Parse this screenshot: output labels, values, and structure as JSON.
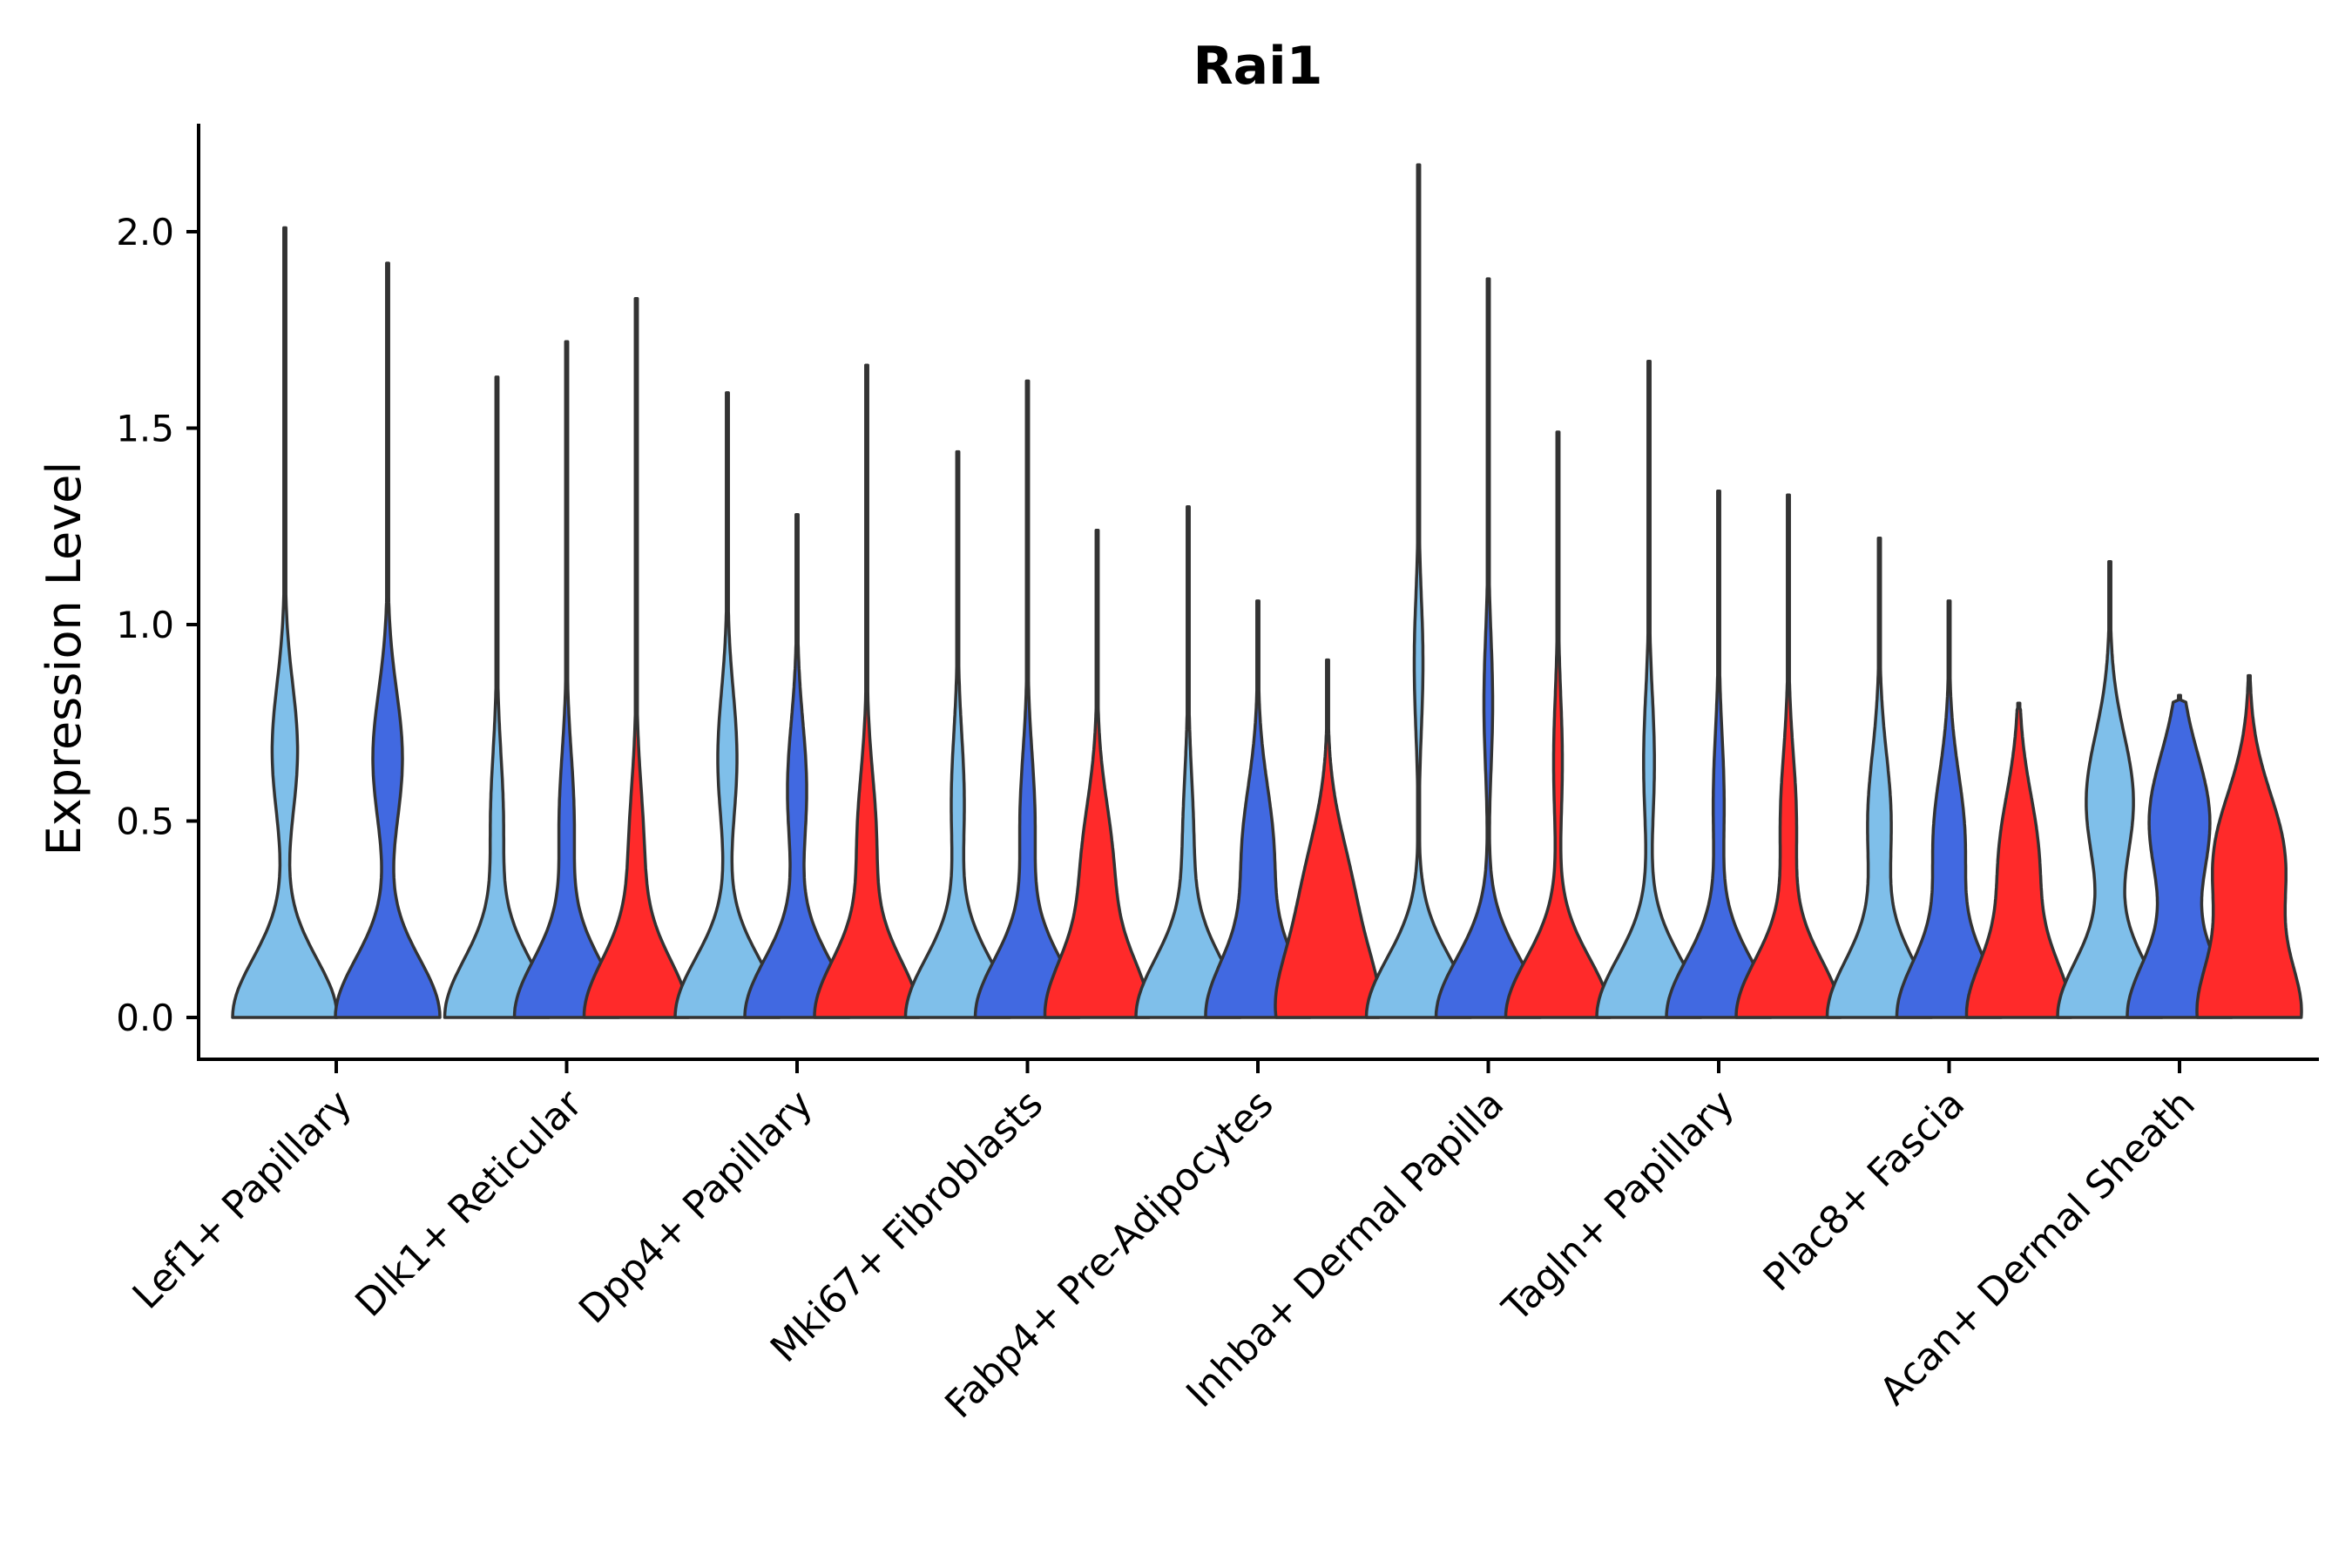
{
  "chart_data": {
    "type": "violin",
    "title": "Rai1",
    "xlabel": "",
    "ylabel": "Expression Level",
    "ylim": [
      -0.11,
      2.28
    ],
    "yticks": [
      0.0,
      0.5,
      1.0,
      1.5,
      2.0
    ],
    "ytick_labels": [
      "0.0",
      "0.5",
      "1.0",
      "1.5",
      "2.0"
    ],
    "grid": false,
    "legend": "none",
    "categories": [
      "Lef1+ Papillary",
      "Dlk1+ Reticular",
      "Dpp4+ Papillary",
      "Mki67+ Fibroblasts",
      "Fabp4+ Pre-Adipocytes",
      "Inhba+ Dermal Papilla",
      "Tagln+ Papillary",
      "Plac8+ Fascia",
      "Acan+ Dermal Sheath"
    ],
    "group_colors": [
      "#7fbfea",
      "#4169e1",
      "#ff2a2a"
    ],
    "violins": [
      [
        {
          "max": 2.01,
          "mode2": 0.68,
          "bulge": 0.24
        },
        {
          "max": 1.92,
          "mode2": 0.66,
          "bulge": 0.28
        },
        null
      ],
      [
        {
          "max": 1.63,
          "mode2": 0.5,
          "bulge": 0.12
        },
        {
          "max": 1.72,
          "mode2": 0.5,
          "bulge": 0.14
        },
        {
          "max": 1.83,
          "mode2": 0.42,
          "bulge": 0.14
        }
      ],
      [
        {
          "max": 1.59,
          "mode2": 0.66,
          "bulge": 0.18
        },
        {
          "max": 1.28,
          "mode2": 0.58,
          "bulge": 0.18
        },
        {
          "max": 1.66,
          "mode2": 0.45,
          "bulge": 0.18
        }
      ],
      [
        {
          "max": 1.44,
          "mode2": 0.55,
          "bulge": 0.12
        },
        {
          "max": 1.62,
          "mode2": 0.5,
          "bulge": 0.14
        },
        {
          "max": 1.24,
          "mode2": 0.38,
          "bulge": 0.3
        }
      ],
      [
        {
          "max": 1.3,
          "mode2": 0.45,
          "bulge": 0.1
        },
        {
          "max": 1.06,
          "mode2": 0.42,
          "bulge": 0.3
        },
        {
          "max": 0.91,
          "mode2": 0.3,
          "bulge": 0.5
        }
      ],
      [
        {
          "max": 2.17,
          "mode2": 0.9,
          "bulge": 0.08
        },
        {
          "max": 1.88,
          "mode2": 0.8,
          "bulge": 0.08
        },
        {
          "max": 1.49,
          "mode2": 0.65,
          "bulge": 0.08
        }
      ],
      [
        {
          "max": 1.67,
          "mode2": 0.65,
          "bulge": 0.1
        },
        {
          "max": 1.34,
          "mode2": 0.55,
          "bulge": 0.1
        },
        {
          "max": 1.33,
          "mode2": 0.5,
          "bulge": 0.15
        }
      ],
      [
        {
          "max": 1.22,
          "mode2": 0.5,
          "bulge": 0.22
        },
        {
          "max": 1.06,
          "mode2": 0.45,
          "bulge": 0.3
        },
        {
          "max": 0.8,
          "mode2": 0.4,
          "bulge": 0.38
        }
      ],
      [
        {
          "max": 1.16,
          "mode2": 0.55,
          "bulge": 0.45
        },
        {
          "max": 0.82,
          "mode2": 0.5,
          "bulge": 0.58
        },
        {
          "max": 0.87,
          "mode2": 0.4,
          "bulge": 0.7
        }
      ]
    ]
  }
}
